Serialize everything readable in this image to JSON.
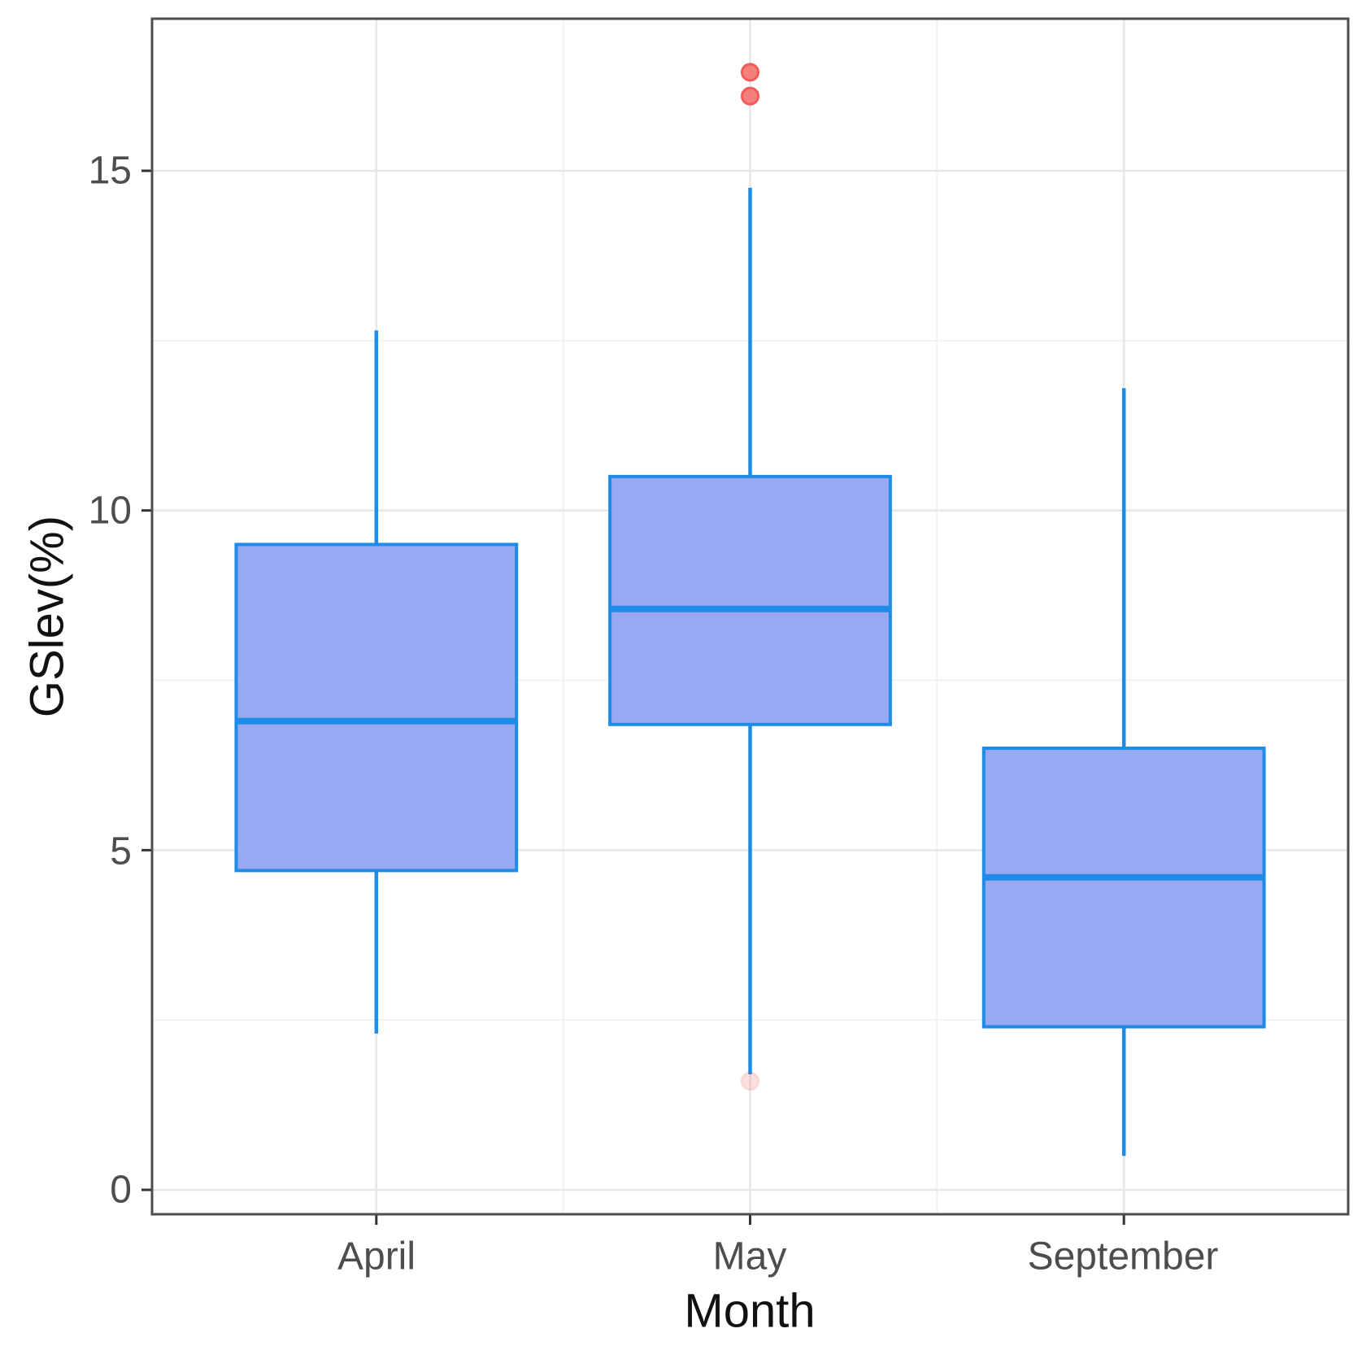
{
  "chart_data": {
    "type": "boxplot",
    "title": "",
    "xlabel": "Month",
    "ylabel": "GSlev(%)",
    "categories": [
      "April",
      "May",
      "September"
    ],
    "y_axis": {
      "major_ticks": [
        0,
        5,
        10,
        15
      ],
      "tick_labels": [
        "0",
        "5",
        "10",
        "15"
      ],
      "minor_gridlines": [
        2.5,
        7.5,
        12.5
      ],
      "range": [
        -0.36,
        17.24
      ],
      "grid": "major and minor, light grey, white background"
    },
    "box_width_ratio": 0.75,
    "series": [
      {
        "category": "April",
        "whisker_low": 2.3,
        "q1": 4.7,
        "median": 6.9,
        "q3": 9.5,
        "whisker_high": 12.65,
        "outliers": [],
        "faint_outliers": []
      },
      {
        "category": "May",
        "whisker_low": 1.7,
        "q1": 6.85,
        "median": 8.55,
        "q3": 10.5,
        "whisker_high": 14.75,
        "outliers": [
          16.1,
          16.45
        ],
        "faint_outliers": [
          1.6
        ]
      },
      {
        "category": "September",
        "whisker_low": 0.5,
        "q1": 2.4,
        "median": 4.6,
        "q3": 6.5,
        "whisker_high": 11.8,
        "outliers": [],
        "faint_outliers": []
      }
    ],
    "colors": {
      "box_fill": "#98a9f1",
      "box_stroke": "#1e8ce6",
      "median_stroke": "#1e8ce6",
      "whisker_stroke": "#1e8ce6",
      "outlier_fill": "#f4736f",
      "outlier_stroke": "#f04b47",
      "grid_major": "#e7e7e7",
      "grid_minor": "#f2f2f2",
      "panel_border": "#4d4d4d",
      "tick_mark": "#333333",
      "tick_label": "#4d4d4d",
      "axis_title": "#111111",
      "background": "#ffffff"
    }
  }
}
